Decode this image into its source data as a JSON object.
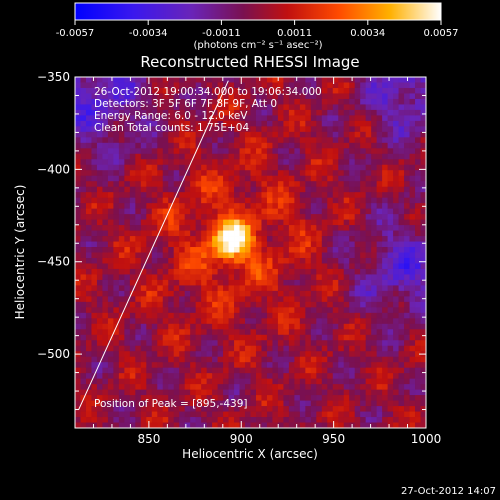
{
  "chart_data": {
    "type": "heatmap",
    "title": "Reconstructed RHESSI Image",
    "colorbar": {
      "ticks": [
        "-0.0057",
        "-0.0034",
        "-0.0011",
        "0.0011",
        "0.0034",
        "0.0057"
      ],
      "unit_label": "(photons cm⁻² s⁻¹ asec⁻²)",
      "range": [
        -0.0057,
        0.0057
      ],
      "colormap": [
        "#0000ff",
        "#5a1ee6",
        "#7a2aa8",
        "#8a0a28",
        "#e02010",
        "#ff9a00",
        "#ffffff"
      ]
    },
    "xlabel": "Heliocentric X (arcsec)",
    "ylabel": "Heliocentric Y (arcsec)",
    "xlim": [
      810,
      1000
    ],
    "ylim": [
      -540,
      -350
    ],
    "x_ticks": [
      850,
      900,
      950,
      1000
    ],
    "x_tick_labels": [
      "850",
      "900",
      "950",
      "1000"
    ],
    "y_ticks": [
      -350,
      -400,
      -450,
      -500
    ],
    "y_tick_labels": [
      "-350",
      "-400",
      "-450",
      "-500"
    ],
    "annotations": [
      "26-Oct-2012 19:00:34.000 to 19:06:34.000",
      "Detectors: 3F 5F 6F 7F 8F 9F, Att 0",
      "Energy Range: 6.0 - 12.0 keV",
      "Clean     Total counts: 1.75E+04"
    ],
    "peak_label": "Position of Peak = [895,-439]",
    "peak": [
      895,
      -439
    ],
    "limb_line": [
      [
        812,
        -530
      ],
      [
        893,
        -352
      ]
    ]
  },
  "footer_timestamp": "27-Oct-2012 14:07"
}
